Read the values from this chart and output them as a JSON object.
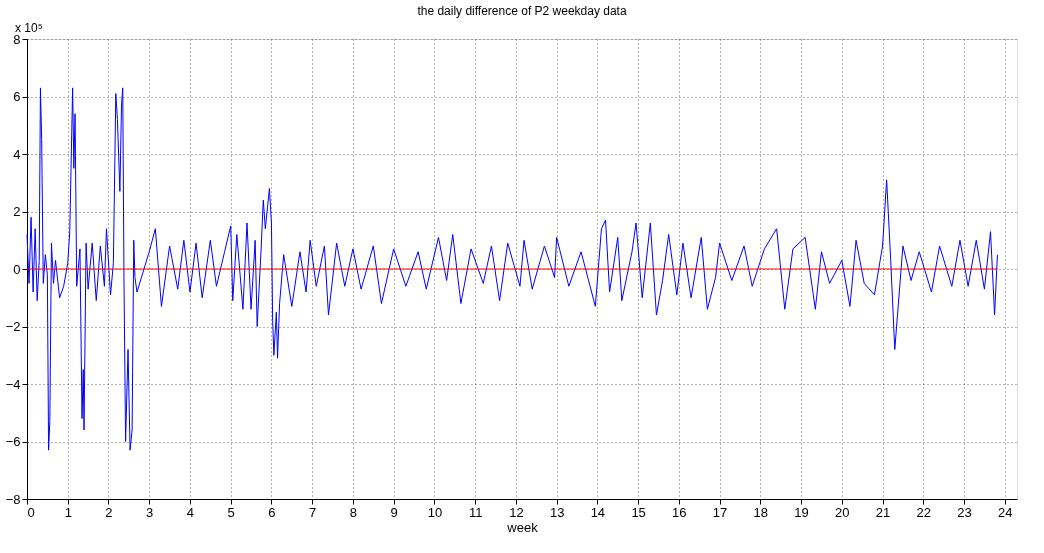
{
  "chart_data": {
    "type": "line",
    "title": "the daily difference of P2 weekday data",
    "xlabel": "week",
    "annotations": [
      "x 10⁵"
    ],
    "xlim": [
      0,
      24.3
    ],
    "xticks": [
      0,
      1,
      2,
      3,
      4,
      5,
      6,
      7,
      8,
      9,
      10,
      11,
      12,
      13,
      14,
      15,
      16,
      17,
      18,
      19,
      20,
      21,
      22,
      23,
      24
    ],
    "ylim": [
      -8,
      8
    ],
    "yticks": [
      -8,
      -6,
      -4,
      -2,
      0,
      2,
      4,
      6,
      8
    ],
    "grid": true,
    "marker": "none",
    "line_style": "solid",
    "series": [
      {
        "color": "#0000ff",
        "x": [
          0,
          0.05,
          0.1,
          0.15,
          0.2,
          0.25,
          0.3,
          0.33,
          0.36,
          0.4,
          0.45,
          0.5,
          0.53,
          0.56,
          0.6,
          0.65,
          0.7,
          0.8,
          0.9,
          1.0,
          1.05,
          1.12,
          1.15,
          1.18,
          1.22,
          1.3,
          1.35,
          1.38,
          1.4,
          1.45,
          1.5,
          1.6,
          1.7,
          1.8,
          1.9,
          1.95,
          2.05,
          2.12,
          2.18,
          2.22,
          2.28,
          2.32,
          2.35,
          2.38,
          2.42,
          2.48,
          2.53,
          2.58,
          2.62,
          2.65,
          2.7,
          3.0,
          3.15,
          3.3,
          3.5,
          3.7,
          3.85,
          4.0,
          4.15,
          4.3,
          4.5,
          4.65,
          4.85,
          5.0,
          5.05,
          5.15,
          5.3,
          5.4,
          5.5,
          5.6,
          5.65,
          5.75,
          5.8,
          5.85,
          5.95,
          6.0,
          6.03,
          6.06,
          6.12,
          6.15,
          6.2,
          6.3,
          6.5,
          6.7,
          6.85,
          6.95,
          7.1,
          7.3,
          7.4,
          7.6,
          7.8,
          8.0,
          8.2,
          8.5,
          8.7,
          9.0,
          9.3,
          9.6,
          9.8,
          10.1,
          10.3,
          10.45,
          10.65,
          10.9,
          11.2,
          11.4,
          11.6,
          11.8,
          12.1,
          12.2,
          12.4,
          12.7,
          12.95,
          13.0,
          13.3,
          13.6,
          13.95,
          14.1,
          14.2,
          14.3,
          14.5,
          14.6,
          14.85,
          14.95,
          15.1,
          15.3,
          15.45,
          15.6,
          15.75,
          15.95,
          16.1,
          16.3,
          16.55,
          16.7,
          16.9,
          17.0,
          17.3,
          17.6,
          17.8,
          18.1,
          18.4,
          18.6,
          18.8,
          19.1,
          19.35,
          19.5,
          19.7,
          20.0,
          20.2,
          20.35,
          20.55,
          20.8,
          21.0,
          21.1,
          21.2,
          21.3,
          21.5,
          21.7,
          21.9,
          22.2,
          22.4,
          22.7,
          22.9,
          23.1,
          23.3,
          23.5,
          23.65,
          23.75,
          23.82
        ],
        "values": [
          1.2,
          -0.5,
          1.8,
          -0.8,
          1.4,
          -1.1,
          0.3,
          6.3,
          4.5,
          -0.5,
          0.5,
          -0.2,
          -6.3,
          -5.3,
          0.9,
          -0.5,
          0.3,
          -1.0,
          -0.6,
          0.2,
          1.3,
          6.3,
          3.5,
          5.4,
          -0.6,
          0.7,
          -5.2,
          -3.5,
          -5.6,
          0.9,
          -0.7,
          0.9,
          -1.1,
          0.8,
          -0.6,
          1.4,
          -0.9,
          0.2,
          6.1,
          5.2,
          2.7,
          5.7,
          6.3,
          -0.3,
          -6.0,
          -2.8,
          -6.3,
          -5.6,
          1.0,
          -0.3,
          -0.8,
          0.6,
          1.4,
          -1.3,
          0.8,
          -0.7,
          1.0,
          -0.8,
          0.9,
          -1.0,
          1.0,
          -0.6,
          0.6,
          1.5,
          -1.1,
          1.2,
          -1.4,
          1.6,
          -1.4,
          1.0,
          -2.0,
          0.8,
          2.4,
          1.4,
          2.8,
          1.6,
          -1.8,
          -3.0,
          -1.5,
          -3.1,
          -1.2,
          0.5,
          -1.3,
          0.6,
          -0.8,
          1.0,
          -0.6,
          0.8,
          -1.6,
          0.9,
          -0.6,
          0.7,
          -0.7,
          0.8,
          -1.2,
          0.7,
          -0.6,
          0.6,
          -0.7,
          1.1,
          -0.4,
          1.2,
          -1.2,
          0.7,
          -0.5,
          0.8,
          -1.1,
          0.9,
          -0.6,
          1.0,
          -0.7,
          0.8,
          -0.3,
          1.1,
          -0.6,
          0.6,
          -1.3,
          1.4,
          1.7,
          -0.8,
          1.1,
          -1.1,
          0.6,
          1.6,
          -1.0,
          1.6,
          -1.6,
          -0.4,
          1.2,
          -0.9,
          0.9,
          -1.0,
          1.1,
          -1.4,
          -0.3,
          0.9,
          -0.4,
          0.8,
          -0.6,
          0.7,
          1.4,
          -1.4,
          0.7,
          1.1,
          -1.4,
          0.6,
          -0.5,
          0.3,
          -1.3,
          1.0,
          -0.5,
          -0.9,
          0.8,
          3.1,
          0.3,
          -2.8,
          0.8,
          -0.4,
          0.6,
          -0.8,
          0.8,
          -0.6,
          1.0,
          -0.6,
          1.0,
          -0.7,
          1.3,
          -1.6,
          0.5
        ]
      },
      {
        "color": "#ff0000",
        "x": [
          0,
          23.82
        ],
        "values": [
          0,
          0
        ]
      }
    ]
  }
}
